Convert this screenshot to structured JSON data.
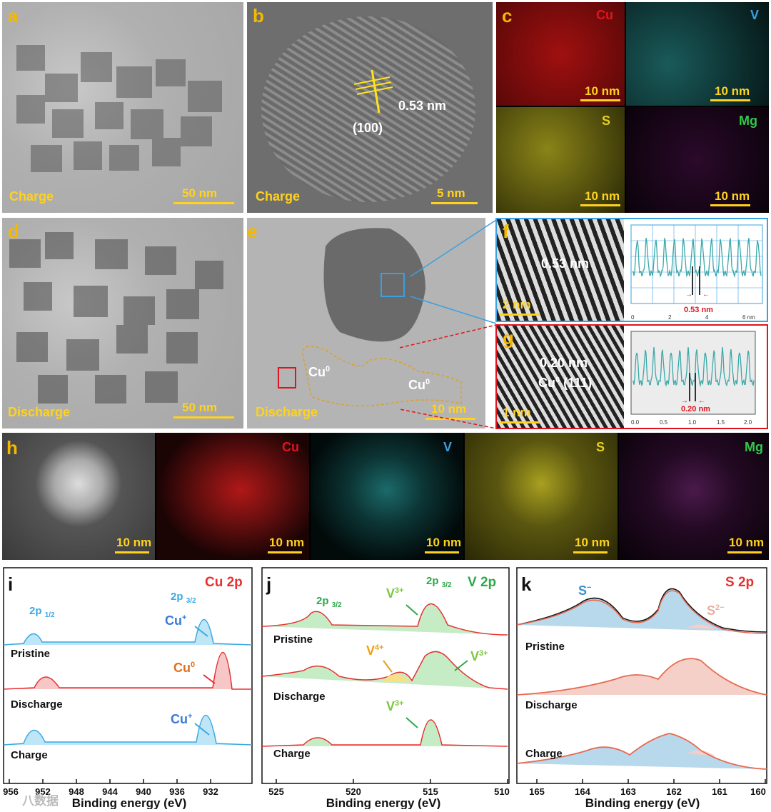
{
  "panels": {
    "a": {
      "label": "a",
      "state": "Charge",
      "scale": "50 nm"
    },
    "b": {
      "label": "b",
      "state": "Charge",
      "scale": "5 nm",
      "d_spacing": "0.53 nm",
      "plane": "(100)"
    },
    "c": {
      "label": "c",
      "elements": [
        "Cu",
        "V",
        "S",
        "Mg"
      ],
      "scale": "10 nm"
    },
    "d": {
      "label": "d",
      "state": "Discharge",
      "scale": "50 nm"
    },
    "e": {
      "label": "e",
      "state": "Discharge",
      "scale": "10 nm",
      "cu0_1": "Cu",
      "cu0_2": "Cu",
      "sup0": "0"
    },
    "f": {
      "label": "f",
      "d_spacing": "0.53 nm",
      "scale": "2 nm",
      "profile_label": "0.53 nm",
      "xticks": [
        "0",
        "2",
        "4",
        "6 nm"
      ]
    },
    "g": {
      "label": "g",
      "d_spacing": "0.20 nm",
      "plane_pre": "Cu",
      "plane_sup": "0",
      "plane_post": " (111)",
      "scale": "1 nm",
      "profile_label": "0.20 nm",
      "xticks": [
        "0.0",
        "0.5",
        "1.0",
        "1.5",
        "2.0"
      ]
    },
    "h": {
      "label": "h",
      "elements": [
        "Cu",
        "V",
        "S",
        "Mg"
      ],
      "scale": "10 nm"
    },
    "i": {
      "label": "i",
      "title": "Cu 2p",
      "xlabel": "Binding energy (eV)",
      "xticks": [
        "956",
        "952",
        "948",
        "944",
        "940",
        "936",
        "932"
      ],
      "peak1": "2p",
      "peak1_sub": "1/2",
      "peak2": "2p",
      "peak2_sub": "3/2",
      "curves": [
        "Pristine",
        "Discharge",
        "Charge"
      ],
      "species": [
        "Cu",
        "+",
        "Cu",
        "0",
        "Cu",
        "+"
      ]
    },
    "j": {
      "label": "j",
      "title": "V 2p",
      "xlabel": "Binding energy (eV)",
      "xticks": [
        "525",
        "520",
        "515",
        "510"
      ],
      "peak1": "2p",
      "peak1_sub": "3/2",
      "peak2": "2p",
      "peak2_sub": "3/2",
      "curves": [
        "Pristine",
        "Discharge",
        "Charge"
      ],
      "v3": "V",
      "v3sup": "3+",
      "v4": "V",
      "v4sup": "4+"
    },
    "k": {
      "label": "k",
      "title": "S 2p",
      "xlabel": "Binding energy  (eV)",
      "xticks": [
        "165",
        "164",
        "163",
        "162",
        "161",
        "160"
      ],
      "curves": [
        "Pristine",
        "Discharge",
        "Charge"
      ],
      "s1": "S",
      "s1sup": "−",
      "s2": "S",
      "s2sup": "2−"
    }
  },
  "watermark": "八数据",
  "colors": {
    "label": "#f5b800",
    "cu": "#e0141e",
    "v": "#3aa0e0",
    "s": "#e8d020",
    "mg": "#2fc94a",
    "scale": "#ffd21f",
    "xps_cu_blue": "#3aa9e0",
    "xps_red": "#e83030",
    "xps_green": "#2ea84a"
  }
}
